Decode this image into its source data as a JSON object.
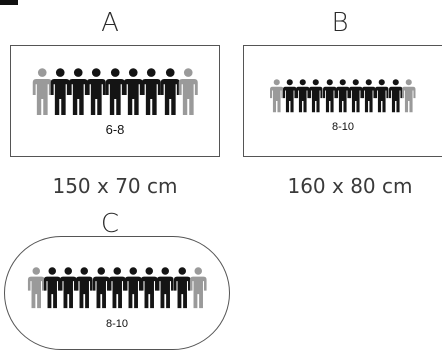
{
  "colors": {
    "host": "#9a9a9a",
    "guest": "#141414",
    "border": "#555555"
  },
  "tables": [
    {
      "letter": "A",
      "shape": "rectangle",
      "capacity": "6-8",
      "size": "150 x 70 cm",
      "guests": 7
    },
    {
      "letter": "B",
      "shape": "rectangle",
      "capacity": "8-10",
      "size": "160 x 80 cm",
      "guests": 9
    },
    {
      "letter": "C",
      "shape": "oval",
      "capacity": "8-10",
      "size": "",
      "guests": 9
    }
  ],
  "icon": "person-icon"
}
